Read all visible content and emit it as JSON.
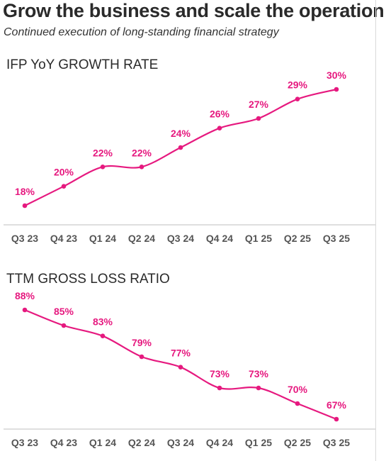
{
  "header": {
    "title": "Grow the business and scale the operation",
    "subtitle": "Continued execution of long-standing financial strategy"
  },
  "colors": {
    "accent": "#e6197f",
    "axis": "#bfbfbf",
    "tick_text": "#555555"
  },
  "chart_data": [
    {
      "type": "line",
      "title": "IFP YoY GROWTH RATE",
      "categories": [
        "Q3 23",
        "Q4 23",
        "Q1 24",
        "Q2 24",
        "Q3 24",
        "Q4 24",
        "Q1 25",
        "Q2 25",
        "Q3 25"
      ],
      "values": [
        18,
        20,
        22,
        22,
        24,
        26,
        27,
        29,
        30
      ],
      "labels": [
        "18%",
        "20%",
        "22%",
        "22%",
        "24%",
        "26%",
        "27%",
        "29%",
        "30%"
      ],
      "ylim": [
        18,
        30
      ],
      "grid": false,
      "legend": "none"
    },
    {
      "type": "line",
      "title": "TTM GROSS LOSS RATIO",
      "categories": [
        "Q3 23",
        "Q4 23",
        "Q1 24",
        "Q2 24",
        "Q3 24",
        "Q4 24",
        "Q1 25",
        "Q2 25",
        "Q3 25"
      ],
      "values": [
        88,
        85,
        83,
        79,
        77,
        73,
        73,
        70,
        67
      ],
      "labels": [
        "88%",
        "85%",
        "83%",
        "79%",
        "77%",
        "73%",
        "73%",
        "70%",
        "67%"
      ],
      "ylim": [
        67,
        88
      ],
      "grid": false,
      "legend": "none"
    }
  ]
}
